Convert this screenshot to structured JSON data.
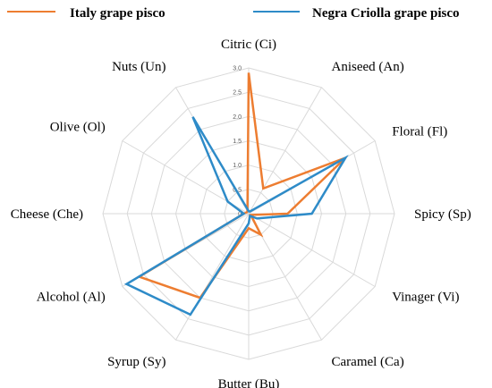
{
  "chart_data": {
    "type": "radar",
    "categories": [
      "Citric (Ci)",
      "Aniseed (An)",
      "Floral (Fl)",
      "Spicy (Sp)",
      "Vinager (Vi)",
      "Caramel (Ca)",
      "Butter (Bu)",
      "Syrup (Sy)",
      "Alcohol (Al)",
      "Cheese (Che)",
      "Olive (Ol)",
      "Nuts (Un)"
    ],
    "rlim": [
      0,
      3.0
    ],
    "ticks": [
      "0",
      "0.5",
      "1.0",
      "1.5",
      "2.0",
      "2.5",
      "3.0"
    ],
    "grid": true,
    "legend_position": "top",
    "series": [
      {
        "name": "Italy grape pisco",
        "color": "#ED7D31",
        "values": [
          2.9,
          0.6,
          2.3,
          0.8,
          0.05,
          0.5,
          0.3,
          2.0,
          2.6,
          0.1,
          0.05,
          0.05
        ]
      },
      {
        "name": "Negra Criolla grape pisco",
        "color": "#2E8BC8",
        "values": [
          0.05,
          0.05,
          2.3,
          1.3,
          0.2,
          0.05,
          0.2,
          2.4,
          2.9,
          0.1,
          0.5,
          2.3
        ]
      }
    ]
  }
}
